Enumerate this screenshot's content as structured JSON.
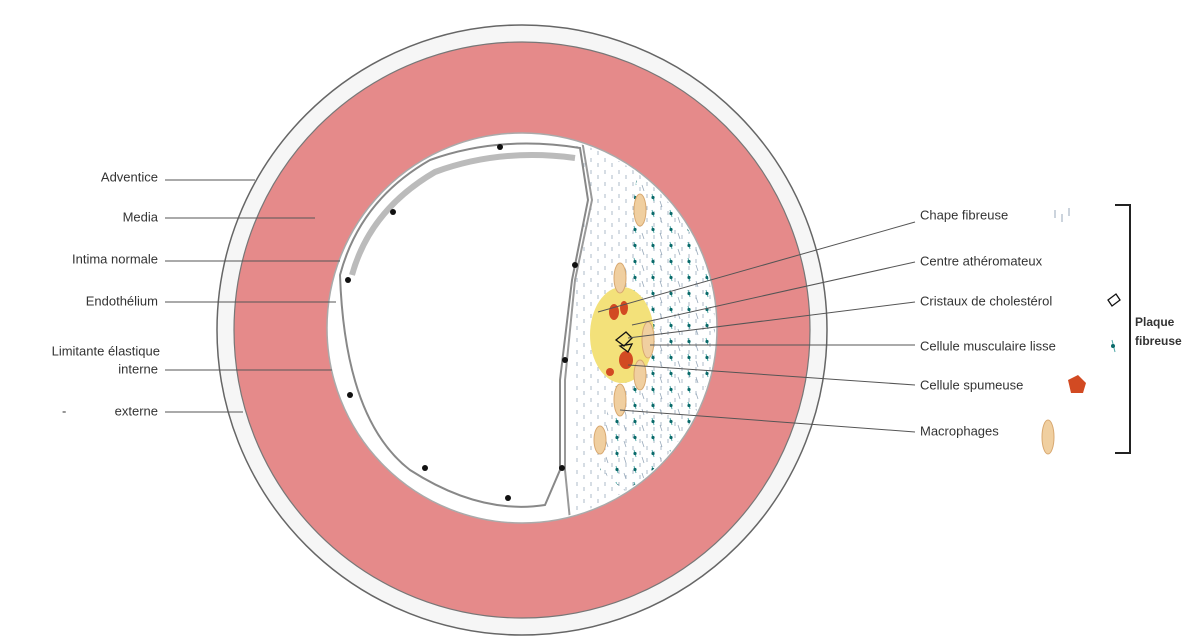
{
  "left_labels": [
    "Adventice",
    "Media",
    "Intima normale",
    "Endothélium",
    "Limitante élastique",
    "interne",
    "-",
    "externe"
  ],
  "right_labels": [
    "Chape fibreuse",
    "Centre athéromateux",
    "Cristaux de cholestérol",
    "Cellule musculaire lisse",
    "Cellule spumeuse",
    "Macrophages"
  ],
  "bracket_label": [
    "Plaque",
    "fibreuse"
  ]
}
